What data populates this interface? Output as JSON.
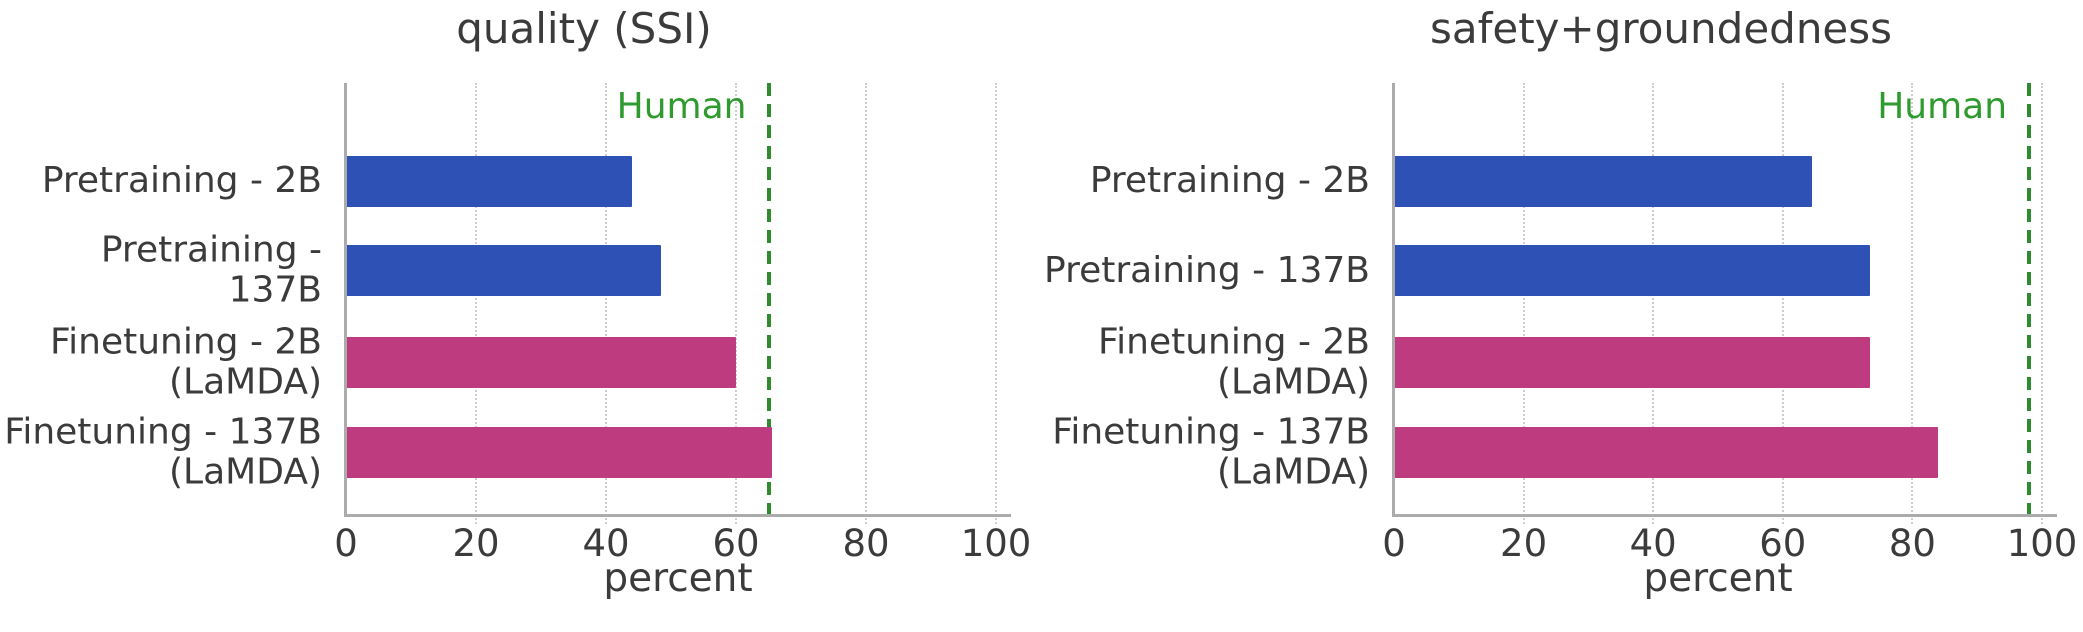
{
  "figure": {
    "background": "#ffffff",
    "text_color": "#3b3b3b"
  },
  "chart_data": [
    {
      "type": "bar",
      "orientation": "horizontal",
      "title": "quality (SSI)",
      "xlabel": "percent",
      "xlim": [
        0,
        100
      ],
      "xticks": [
        "0",
        "20",
        "40",
        "60",
        "80",
        "100"
      ],
      "grid": "dotted-vertical",
      "categories": [
        "Pretraining - 2B",
        "Pretraining - 137B",
        "Finetuning - 2B\n(LaMDA)",
        "Finetuning - 137B\n(LaMDA)"
      ],
      "values": [
        44,
        48.5,
        60,
        65.5
      ],
      "bar_colors": [
        "#2e51b5",
        "#2e51b5",
        "#be3b7f",
        "#be3b7f"
      ],
      "reference_line": {
        "label": "Human",
        "value": 65,
        "line_color": "#2e8b2e",
        "text_color": "#2f9b2f"
      }
    },
    {
      "type": "bar",
      "orientation": "horizontal",
      "title": "safety+groundedness",
      "xlabel": "percent",
      "xlim": [
        0,
        100
      ],
      "xticks": [
        "0",
        "20",
        "40",
        "60",
        "80",
        "100"
      ],
      "grid": "dotted-vertical",
      "categories": [
        "Pretraining - 2B",
        "Pretraining - 137B",
        "Finetuning - 2B\n(LaMDA)",
        "Finetuning - 137B\n(LaMDA)"
      ],
      "values": [
        64.5,
        73.5,
        73.5,
        84
      ],
      "bar_colors": [
        "#2e51b5",
        "#2e51b5",
        "#be3b7f",
        "#be3b7f"
      ],
      "reference_line": {
        "label": "Human",
        "value": 98,
        "line_color": "#2e8b2e",
        "text_color": "#2f9b2f"
      }
    }
  ]
}
